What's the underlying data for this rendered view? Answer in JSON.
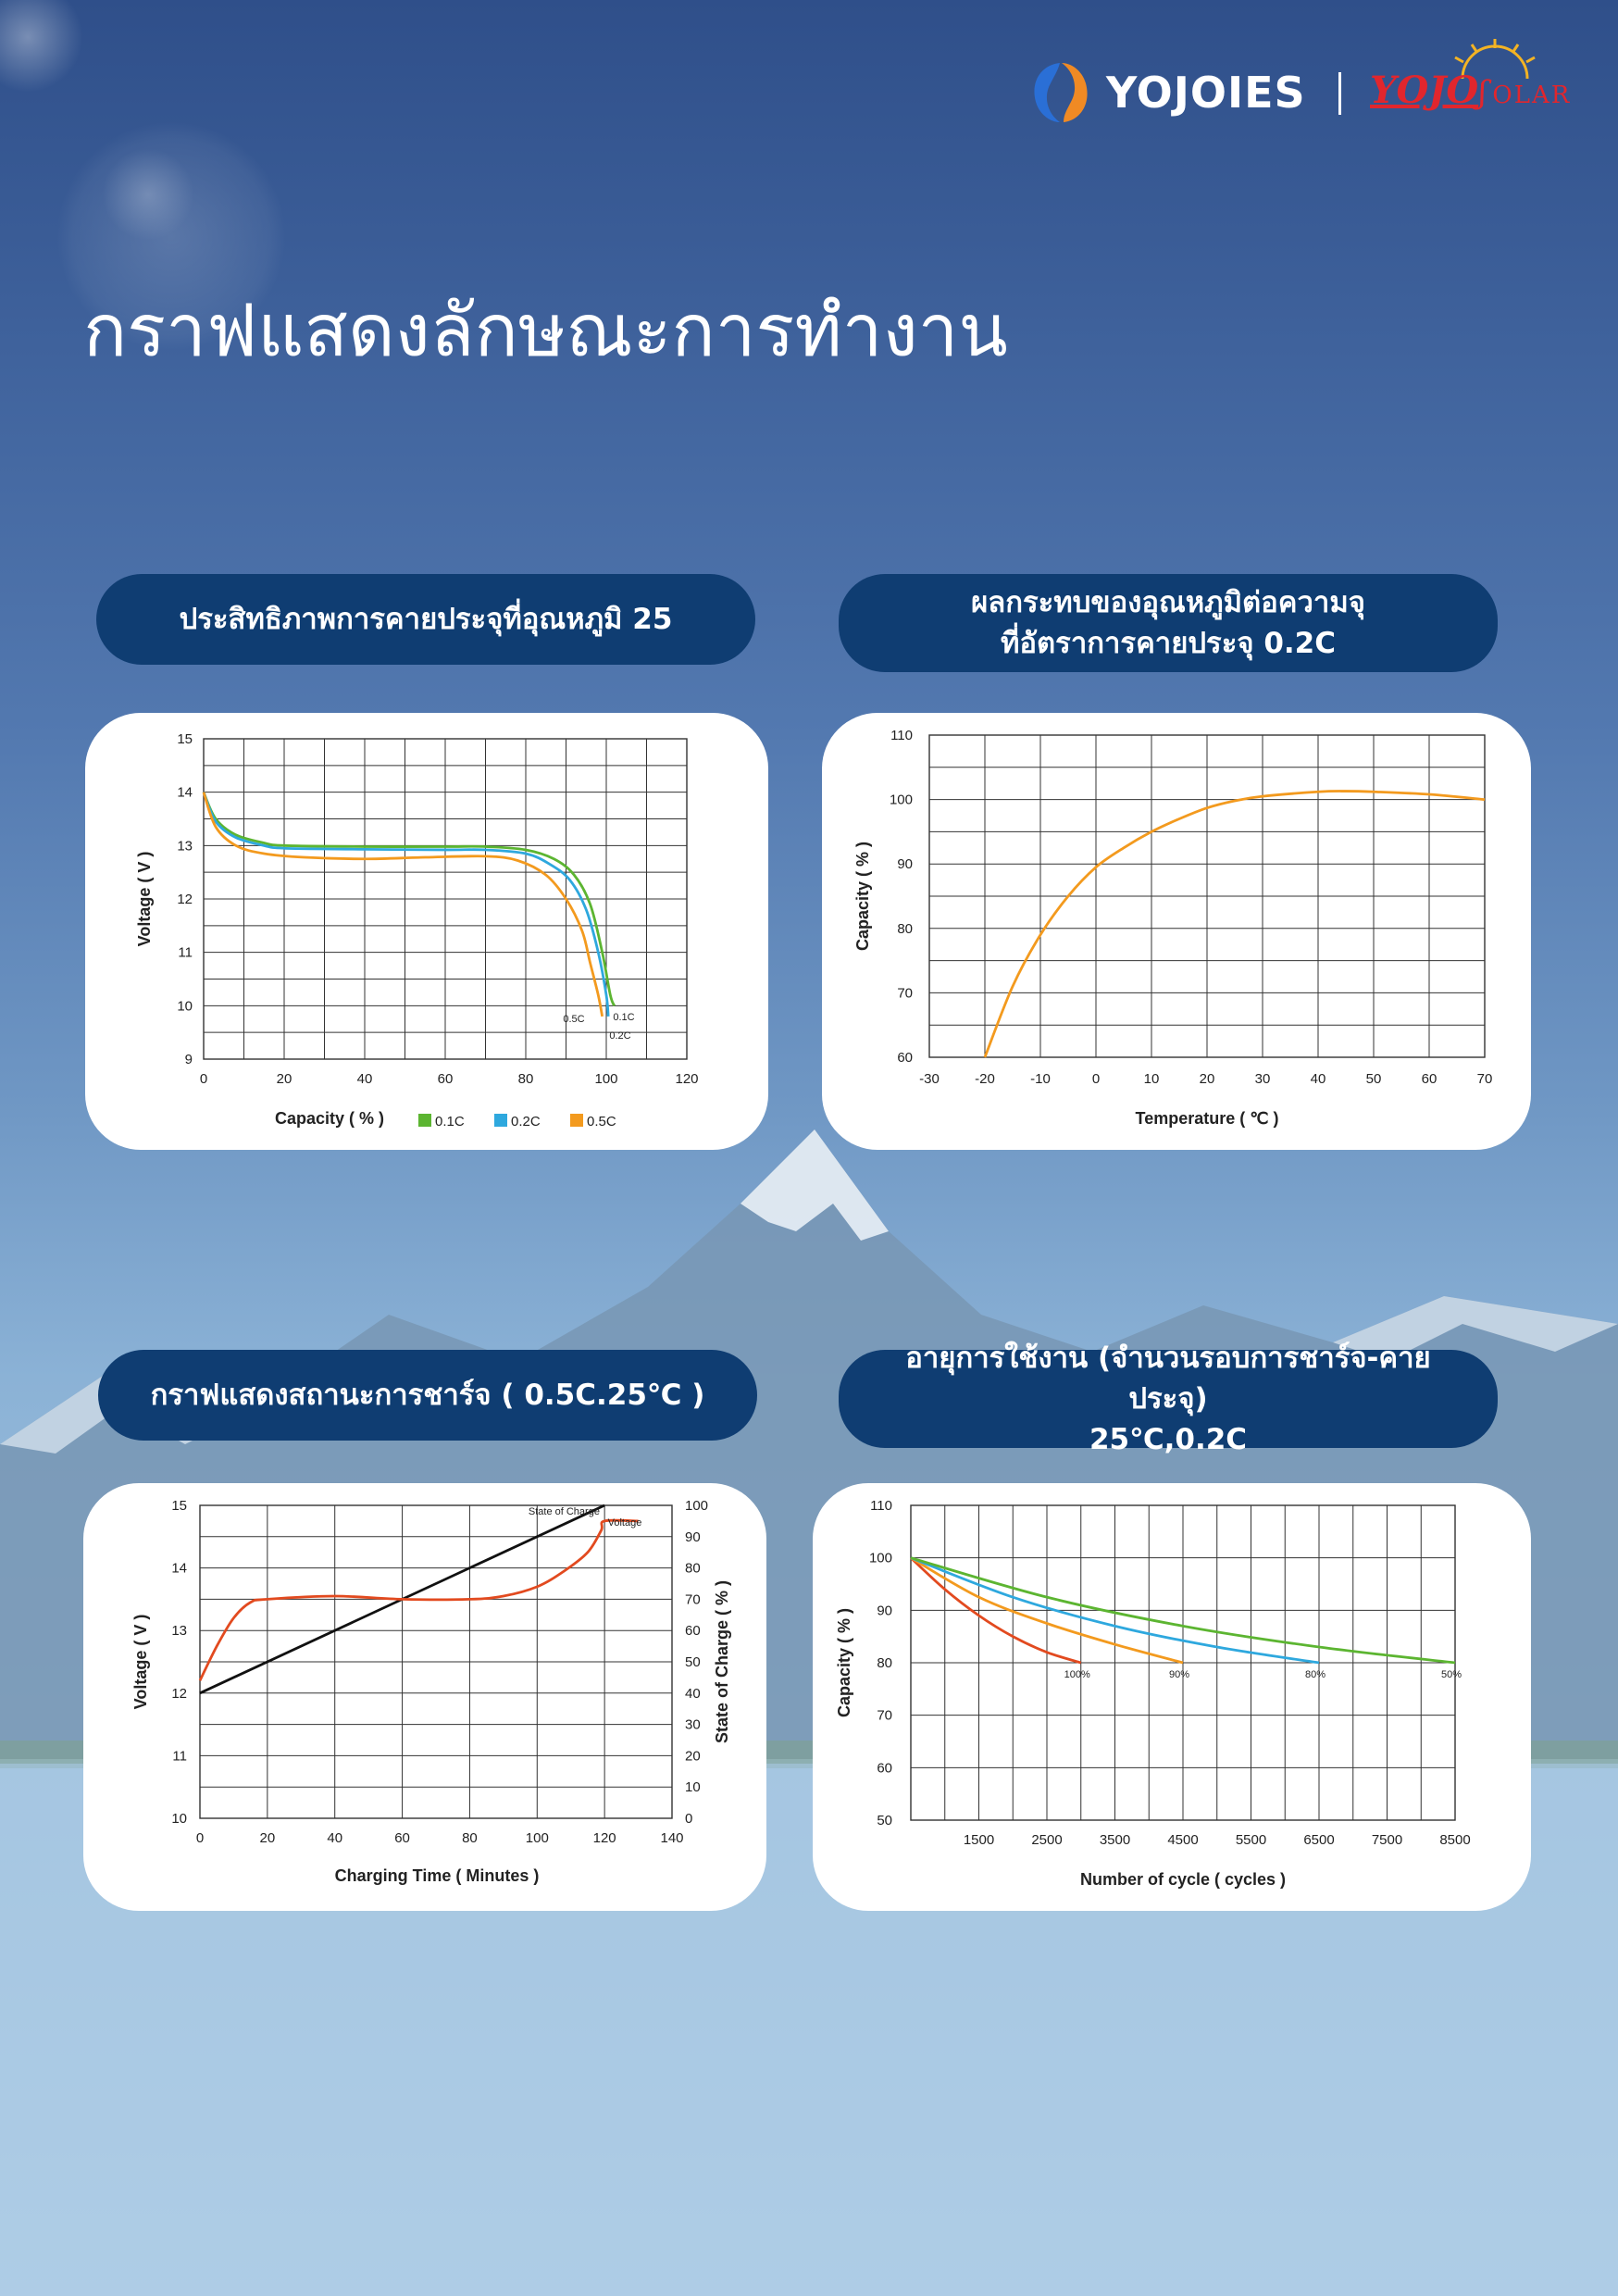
{
  "header": {
    "brand_left": "YOJOIES",
    "brand_right_main": "YOJO",
    "brand_right_sub": "OLAR",
    "title": "กราฟแสดงลักษณะการทำงาน"
  },
  "colors": {
    "pill_bg": "#0f3d72",
    "green": "#5cb531",
    "blue": "#2ea8de",
    "orange": "#f39a1e",
    "red": "#e24a1f",
    "black": "#111111",
    "brand_red": "#e1262d",
    "logo_blue": "#2a6fd6",
    "logo_orange": "#f08a24"
  },
  "icons": [
    "swirl-logo-icon",
    "sun-rays-icon"
  ],
  "pills": {
    "discharge": "ประสิทธิภาพการคายประจุที่อุณหภูมิ 25",
    "temp_line1": "ผลกระทบของอุณหภูมิต่อความจุ",
    "temp_line2": "ที่อัตราการคายประจุ 0.2C",
    "charge": "กราฟแสดงสถานะการชาร์จ ( 0.5C.25℃ )",
    "life_line1": "อายุการใช้งาน (จำนวนรอบการชาร์จ-คายประจุ)",
    "life_line2": "25℃,0.2C"
  },
  "chart_data": [
    {
      "id": "discharge",
      "type": "line",
      "title": "ประสิทธิภาพการคายประจุที่อุณหภูมิ 25",
      "xlabel": "Capacity ( % )",
      "ylabel": "Voltage ( V )",
      "xlim": [
        0,
        120
      ],
      "ylim": [
        9,
        15
      ],
      "xticks": [
        0,
        20,
        40,
        60,
        80,
        100,
        120
      ],
      "yticks": [
        9,
        10,
        11,
        12,
        13,
        14,
        15
      ],
      "grid": true,
      "legend_position": "bottom",
      "series": [
        {
          "name": "0.1C",
          "color": "#5cb531",
          "points": [
            [
              0,
              14.0
            ],
            [
              3,
              13.5
            ],
            [
              8,
              13.2
            ],
            [
              15,
              13.05
            ],
            [
              20,
              13.0
            ],
            [
              40,
              12.98
            ],
            [
              60,
              12.98
            ],
            [
              70,
              12.98
            ],
            [
              80,
              12.92
            ],
            [
              87,
              12.75
            ],
            [
              92,
              12.45
            ],
            [
              96,
              11.9
            ],
            [
              99,
              11.0
            ],
            [
              101,
              10.2
            ],
            [
              102,
              10.0
            ]
          ]
        },
        {
          "name": "0.2C",
          "color": "#2ea8de",
          "points": [
            [
              0,
              14.0
            ],
            [
              3,
              13.45
            ],
            [
              8,
              13.15
            ],
            [
              15,
              13.0
            ],
            [
              20,
              12.95
            ],
            [
              40,
              12.93
            ],
            [
              60,
              12.92
            ],
            [
              70,
              12.92
            ],
            [
              80,
              12.85
            ],
            [
              86,
              12.65
            ],
            [
              91,
              12.35
            ],
            [
              95,
              11.8
            ],
            [
              98,
              11.0
            ],
            [
              100,
              10.2
            ],
            [
              100.5,
              9.8
            ]
          ]
        },
        {
          "name": "0.5C",
          "color": "#f39a1e",
          "points": [
            [
              0,
              14.0
            ],
            [
              3,
              13.35
            ],
            [
              8,
              13.0
            ],
            [
              15,
              12.85
            ],
            [
              25,
              12.78
            ],
            [
              40,
              12.75
            ],
            [
              55,
              12.78
            ],
            [
              70,
              12.8
            ],
            [
              78,
              12.72
            ],
            [
              85,
              12.45
            ],
            [
              90,
              12.0
            ],
            [
              94,
              11.4
            ],
            [
              96,
              10.8
            ],
            [
              98,
              10.2
            ],
            [
              99,
              9.8
            ]
          ]
        }
      ],
      "annotations": [
        "0.5C",
        "0.1C",
        "0.2C"
      ]
    },
    {
      "id": "temperature",
      "type": "line",
      "title": "ผลกระทบของอุณหภูมิต่อความจุ ที่อัตราการคายประจุ 0.2C",
      "xlabel": "Temperature ( ℃ )",
      "ylabel": "Capacity ( % )",
      "xlim": [
        -30,
        70
      ],
      "ylim": [
        60,
        110
      ],
      "xticks": [
        -30,
        -20,
        -10,
        0,
        10,
        20,
        30,
        40,
        50,
        60,
        70
      ],
      "yticks": [
        60,
        70,
        80,
        90,
        100,
        110
      ],
      "grid": true,
      "series": [
        {
          "color": "#f39a1e",
          "points": [
            [
              -20,
              60
            ],
            [
              -15,
              71
            ],
            [
              -10,
              79
            ],
            [
              -5,
              85
            ],
            [
              0,
              89.5
            ],
            [
              5,
              92.5
            ],
            [
              10,
              95
            ],
            [
              15,
              97
            ],
            [
              20,
              98.7
            ],
            [
              25,
              99.8
            ],
            [
              30,
              100.5
            ],
            [
              40,
              101.2
            ],
            [
              45,
              101.3
            ],
            [
              50,
              101.2
            ],
            [
              60,
              100.8
            ],
            [
              70,
              100
            ]
          ]
        }
      ]
    },
    {
      "id": "charge",
      "type": "line",
      "title": "กราฟแสดงสถานะการชาร์จ ( 0.5C.25℃ )",
      "xlabel": "Charging Time ( Minutes )",
      "ylabel": "Voltage ( V )",
      "y2label": "State of Charge ( % )",
      "xlim": [
        0,
        140
      ],
      "ylim": [
        10,
        15
      ],
      "y2lim": [
        0,
        100
      ],
      "xticks": [
        0,
        20,
        40,
        60,
        80,
        100,
        120,
        140
      ],
      "yticks": [
        10,
        11,
        12,
        13,
        14,
        15
      ],
      "y2ticks": [
        0,
        10,
        20,
        30,
        40,
        50,
        60,
        70,
        80,
        90,
        100
      ],
      "grid": true,
      "series": [
        {
          "name": "State of Charge",
          "axis": "y2",
          "color": "#111111",
          "points": [
            [
              0,
              40
            ],
            [
              120,
              100
            ]
          ]
        },
        {
          "name": "Voltage",
          "axis": "y",
          "color": "#e24a1f",
          "points": [
            [
              0,
              12.2
            ],
            [
              5,
              12.75
            ],
            [
              10,
              13.2
            ],
            [
              15,
              13.45
            ],
            [
              20,
              13.5
            ],
            [
              40,
              13.55
            ],
            [
              60,
              13.5
            ],
            [
              80,
              13.5
            ],
            [
              90,
              13.55
            ],
            [
              100,
              13.7
            ],
            [
              108,
              13.95
            ],
            [
              115,
              14.25
            ],
            [
              119,
              14.6
            ],
            [
              120,
              14.75
            ],
            [
              130,
              14.75
            ]
          ]
        }
      ]
    },
    {
      "id": "cycle_life",
      "type": "line",
      "title": "อายุการใช้งาน (จำนวนรอบการชาร์จ-คายประจุ) 25℃,0.2C",
      "xlabel": "Number of cycle ( cycles )",
      "ylabel": "Capacity ( % )",
      "xlim": [
        500,
        8500
      ],
      "ylim": [
        50,
        110
      ],
      "xticks": [
        1500,
        2500,
        3500,
        4500,
        5500,
        6500,
        7500,
        8500
      ],
      "yticks": [
        50,
        60,
        70,
        80,
        90,
        100,
        110
      ],
      "grid": true,
      "series": [
        {
          "name": "100%",
          "color": "#e24a1f",
          "points": [
            [
              500,
              100
            ],
            [
              1000,
              94
            ],
            [
              1500,
              89
            ],
            [
              2000,
              85
            ],
            [
              2500,
              82
            ],
            [
              3000,
              80
            ]
          ]
        },
        {
          "name": "90%",
          "color": "#f39a1e",
          "points": [
            [
              500,
              100
            ],
            [
              1500,
              92.5
            ],
            [
              2500,
              87.5
            ],
            [
              3500,
              83.5
            ],
            [
              4500,
              80
            ]
          ]
        },
        {
          "name": "80%",
          "color": "#2ea8de",
          "points": [
            [
              500,
              100
            ],
            [
              2000,
              92.5
            ],
            [
              3500,
              87
            ],
            [
              5000,
              83
            ],
            [
              6500,
              80
            ]
          ]
        },
        {
          "name": "50%",
          "color": "#5cb531",
          "points": [
            [
              500,
              100
            ],
            [
              2500,
              92.5
            ],
            [
              4500,
              87
            ],
            [
              6500,
              83
            ],
            [
              8500,
              80
            ]
          ]
        }
      ]
    }
  ]
}
